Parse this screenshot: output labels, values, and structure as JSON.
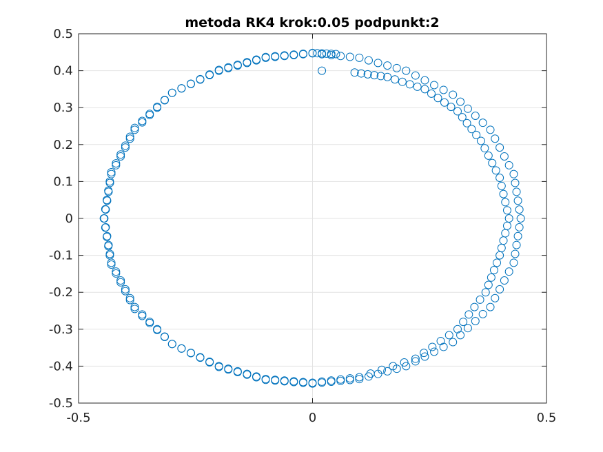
{
  "chart_data": {
    "type": "scatter",
    "title": "metoda RK4 krok:0.05 podpunkt:2",
    "xlabel": "",
    "ylabel": "",
    "xlim": [
      -0.5,
      0.5
    ],
    "ylim": [
      -0.5,
      0.5
    ],
    "xticks": [
      "-0.5",
      "0",
      "0.5"
    ],
    "yticks": [
      "0.5",
      "0.4",
      "0.3",
      "0.2",
      "0.1",
      "0",
      "-0.1",
      "-0.2",
      "-0.3",
      "-0.4",
      "-0.5"
    ],
    "grid": true,
    "marker": "circle",
    "series_color": "#0072BD",
    "series": [
      {
        "values": [
          {
            "x": 0.02,
            "y": 0.4
          },
          {
            "x": 0.09,
            "y": 0.395
          },
          {
            "x": 0.16,
            "y": 0.383
          },
          {
            "x": 0.24,
            "y": 0.35
          },
          {
            "x": 0.31,
            "y": 0.29
          },
          {
            "x": 0.36,
            "y": 0.21
          },
          {
            "x": 0.4,
            "y": 0.11
          },
          {
            "x": 0.42,
            "y": 0.0
          },
          {
            "x": 0.4,
            "y": -0.1
          },
          {
            "x": 0.37,
            "y": -0.2
          },
          {
            "x": 0.31,
            "y": -0.3
          },
          {
            "x": 0.22,
            "y": -0.38
          },
          {
            "x": 0.1,
            "y": -0.43
          },
          {
            "x": 0.0,
            "y": -0.445
          },
          {
            "x": -0.1,
            "y": -0.435
          },
          {
            "x": -0.2,
            "y": -0.4
          },
          {
            "x": -0.3,
            "y": -0.34
          },
          {
            "x": -0.38,
            "y": -0.24
          },
          {
            "x": -0.43,
            "y": -0.12
          },
          {
            "x": -0.445,
            "y": 0.0
          },
          {
            "x": -0.43,
            "y": 0.12
          },
          {
            "x": -0.38,
            "y": 0.24
          },
          {
            "x": -0.3,
            "y": 0.34
          },
          {
            "x": -0.2,
            "y": 0.4
          },
          {
            "x": -0.1,
            "y": 0.435
          },
          {
            "x": 0.0,
            "y": 0.447
          },
          {
            "x": 0.1,
            "y": 0.435
          },
          {
            "x": 0.2,
            "y": 0.4
          },
          {
            "x": 0.3,
            "y": 0.335
          },
          {
            "x": 0.38,
            "y": 0.24
          },
          {
            "x": 0.43,
            "y": 0.12
          },
          {
            "x": 0.445,
            "y": 0.0
          },
          {
            "x": 0.43,
            "y": -0.12
          },
          {
            "x": 0.38,
            "y": -0.24
          },
          {
            "x": 0.3,
            "y": -0.335
          },
          {
            "x": 0.2,
            "y": -0.4
          },
          {
            "x": 0.1,
            "y": -0.435
          },
          {
            "x": 0.0,
            "y": -0.447
          },
          {
            "x": -0.1,
            "y": -0.437
          },
          {
            "x": -0.2,
            "y": -0.402
          },
          {
            "x": -0.3,
            "y": -0.34
          },
          {
            "x": -0.38,
            "y": -0.245
          },
          {
            "x": -0.43,
            "y": -0.125
          },
          {
            "x": -0.446,
            "y": 0.0
          },
          {
            "x": -0.43,
            "y": 0.125
          },
          {
            "x": -0.38,
            "y": 0.245
          },
          {
            "x": -0.3,
            "y": 0.34
          },
          {
            "x": -0.2,
            "y": 0.402
          },
          {
            "x": -0.1,
            "y": 0.437
          },
          {
            "x": 0.0,
            "y": 0.448
          },
          {
            "x": 0.05,
            "y": 0.445
          }
        ]
      }
    ]
  }
}
